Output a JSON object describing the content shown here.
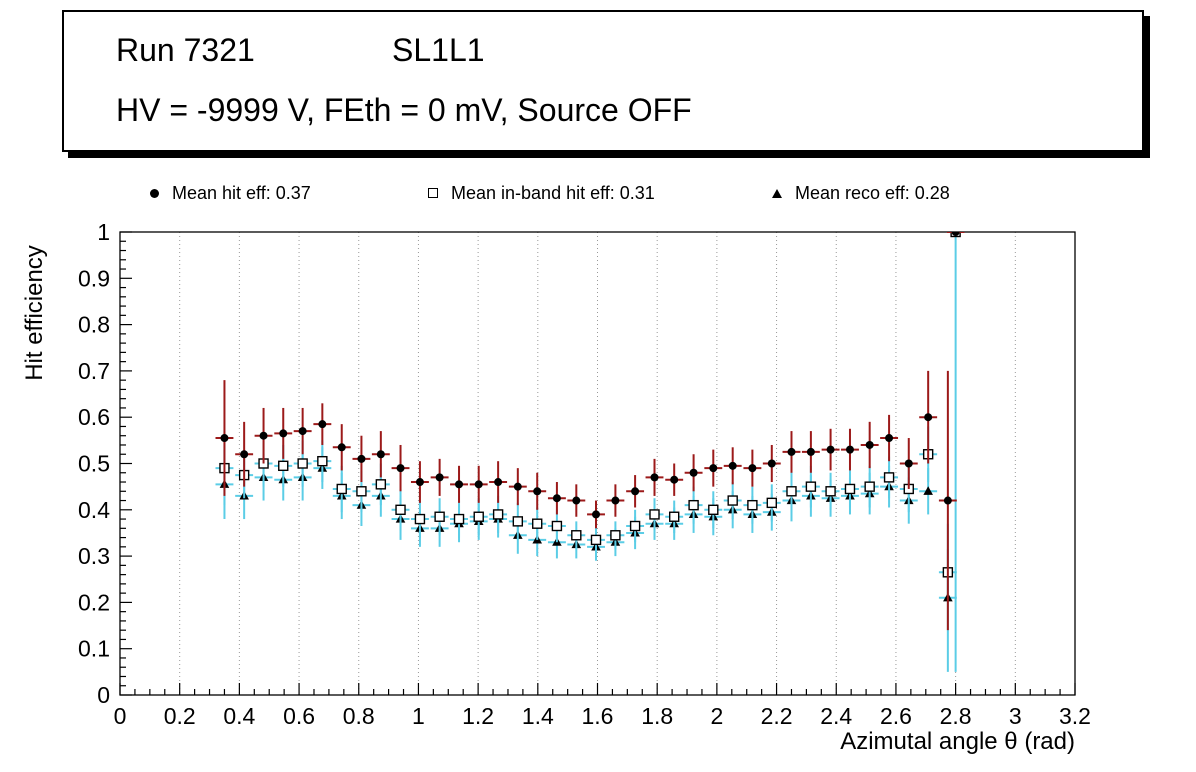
{
  "title_box": {
    "line1_left": "Run 7321",
    "line1_right": "SL1L1",
    "line2": "HV = -9999 V, FEth = 0 mV, Source OFF"
  },
  "legend": {
    "items": [
      {
        "marker": "filled-circle",
        "label": "Mean hit  eff: 0.37"
      },
      {
        "marker": "open-square",
        "label": "Mean in-band hit eff: 0.31"
      },
      {
        "marker": "filled-triangle",
        "label": "Mean reco eff: 0.28"
      }
    ]
  },
  "chart_data": {
    "type": "scatter",
    "title": "",
    "xlabel": "Azimutal angle θ (rad)",
    "ylabel": "Hit efficiency",
    "xlim": [
      0,
      3.2
    ],
    "ylim": [
      0,
      1
    ],
    "x_ticks": {
      "values": [
        0,
        0.2,
        0.4,
        0.6,
        0.8,
        1,
        1.2,
        1.4,
        1.6,
        1.8,
        2,
        2.2,
        2.4,
        2.6,
        2.8,
        3,
        3.2
      ],
      "labels": [
        "0",
        "0.2",
        "0.4",
        "0.6",
        "0.8",
        "1",
        "1.2",
        "1.4",
        "1.6",
        "1.8",
        "2",
        "2.2",
        "2.4",
        "2.6",
        "2.8",
        "3",
        "3.2"
      ]
    },
    "y_ticks": {
      "values": [
        0,
        0.1,
        0.2,
        0.3,
        0.4,
        0.5,
        0.6,
        0.7,
        0.8,
        0.9,
        1
      ],
      "labels": [
        "0",
        "0.1",
        "0.2",
        "0.3",
        "0.4",
        "0.5",
        "0.6",
        "0.7",
        "0.8",
        "0.9",
        "1"
      ]
    },
    "grid": {
      "vertical": true,
      "horizontal": false,
      "style": "dotted",
      "color": "#999999"
    },
    "legend_position": "top",
    "series": [
      {
        "name": "Mean hit  eff: 0.37",
        "marker": "filled-circle",
        "marker_color": "#000000",
        "error_color": "#9c1a1a",
        "ex": 0.03,
        "x": [
          0.35,
          0.416,
          0.481,
          0.547,
          0.612,
          0.678,
          0.743,
          0.809,
          0.874,
          0.94,
          1.005,
          1.071,
          1.136,
          1.202,
          1.267,
          1.333,
          1.398,
          1.464,
          1.529,
          1.595,
          1.66,
          1.726,
          1.791,
          1.857,
          1.922,
          1.988,
          2.053,
          2.119,
          2.184,
          2.25,
          2.315,
          2.381,
          2.446,
          2.512,
          2.577,
          2.643,
          2.708,
          2.774,
          2.8
        ],
        "y": [
          0.555,
          0.52,
          0.56,
          0.565,
          0.57,
          0.585,
          0.535,
          0.51,
          0.52,
          0.49,
          0.46,
          0.47,
          0.455,
          0.455,
          0.46,
          0.45,
          0.44,
          0.425,
          0.42,
          0.39,
          0.42,
          0.44,
          0.47,
          0.465,
          0.48,
          0.49,
          0.495,
          0.49,
          0.5,
          0.525,
          0.525,
          0.53,
          0.53,
          0.54,
          0.555,
          0.5,
          0.6,
          0.42,
          1.0
        ],
        "ey": [
          0.125,
          0.07,
          0.06,
          0.055,
          0.05,
          0.045,
          0.05,
          0.05,
          0.05,
          0.05,
          0.045,
          0.04,
          0.04,
          0.04,
          0.045,
          0.04,
          0.04,
          0.035,
          0.035,
          0.03,
          0.035,
          0.035,
          0.04,
          0.035,
          0.04,
          0.04,
          0.04,
          0.04,
          0.04,
          0.045,
          0.045,
          0.045,
          0.045,
          0.05,
          0.05,
          0.055,
          0.1,
          0.28,
          0.0
        ]
      },
      {
        "name": "Mean in-band hit eff: 0.31",
        "marker": "open-square",
        "marker_color": "#ffffff",
        "error_color": "#5bcde6",
        "ex": 0.03,
        "x": [
          0.35,
          0.416,
          0.481,
          0.547,
          0.612,
          0.678,
          0.743,
          0.809,
          0.874,
          0.94,
          1.005,
          1.071,
          1.136,
          1.202,
          1.267,
          1.333,
          1.398,
          1.464,
          1.529,
          1.595,
          1.66,
          1.726,
          1.791,
          1.857,
          1.922,
          1.988,
          2.053,
          2.119,
          2.184,
          2.25,
          2.315,
          2.381,
          2.446,
          2.512,
          2.577,
          2.643,
          2.708,
          2.774,
          2.8
        ],
        "y": [
          0.49,
          0.475,
          0.5,
          0.495,
          0.5,
          0.505,
          0.445,
          0.44,
          0.455,
          0.4,
          0.38,
          0.385,
          0.38,
          0.385,
          0.39,
          0.375,
          0.37,
          0.365,
          0.345,
          0.335,
          0.345,
          0.365,
          0.39,
          0.385,
          0.41,
          0.4,
          0.42,
          0.41,
          0.415,
          0.44,
          0.45,
          0.44,
          0.445,
          0.45,
          0.47,
          0.445,
          0.52,
          0.265,
          1.0
        ],
        "ey": [
          0.08,
          0.05,
          0.05,
          0.045,
          0.05,
          0.045,
          0.05,
          0.045,
          0.045,
          0.045,
          0.04,
          0.04,
          0.04,
          0.04,
          0.04,
          0.04,
          0.035,
          0.035,
          0.03,
          0.03,
          0.03,
          0.035,
          0.035,
          0.035,
          0.04,
          0.04,
          0.04,
          0.04,
          0.04,
          0.045,
          0.045,
          0.04,
          0.04,
          0.045,
          0.045,
          0.05,
          0.06,
          0.05,
          0.95
        ]
      },
      {
        "name": "Mean reco eff: 0.28",
        "marker": "filled-triangle",
        "marker_color": "#000000",
        "error_color": "#5bcde6",
        "ex": 0.03,
        "x": [
          0.35,
          0.416,
          0.481,
          0.547,
          0.612,
          0.678,
          0.743,
          0.809,
          0.874,
          0.94,
          1.005,
          1.071,
          1.136,
          1.202,
          1.267,
          1.333,
          1.398,
          1.464,
          1.529,
          1.595,
          1.66,
          1.726,
          1.791,
          1.857,
          1.922,
          1.988,
          2.053,
          2.119,
          2.184,
          2.25,
          2.315,
          2.381,
          2.446,
          2.512,
          2.577,
          2.643,
          2.708,
          2.774
        ],
        "y": [
          0.455,
          0.43,
          0.47,
          0.465,
          0.47,
          0.49,
          0.43,
          0.41,
          0.43,
          0.38,
          0.36,
          0.36,
          0.37,
          0.375,
          0.38,
          0.345,
          0.335,
          0.33,
          0.325,
          0.32,
          0.33,
          0.35,
          0.37,
          0.37,
          0.39,
          0.385,
          0.4,
          0.39,
          0.395,
          0.42,
          0.43,
          0.425,
          0.43,
          0.435,
          0.45,
          0.42,
          0.44,
          0.21
        ],
        "ey": [
          0.075,
          0.05,
          0.05,
          0.045,
          0.05,
          0.045,
          0.05,
          0.045,
          0.045,
          0.045,
          0.04,
          0.04,
          0.04,
          0.04,
          0.04,
          0.04,
          0.035,
          0.035,
          0.03,
          0.03,
          0.03,
          0.035,
          0.035,
          0.035,
          0.04,
          0.04,
          0.04,
          0.04,
          0.04,
          0.045,
          0.045,
          0.04,
          0.04,
          0.045,
          0.045,
          0.05,
          0.05,
          0.16
        ]
      }
    ]
  }
}
